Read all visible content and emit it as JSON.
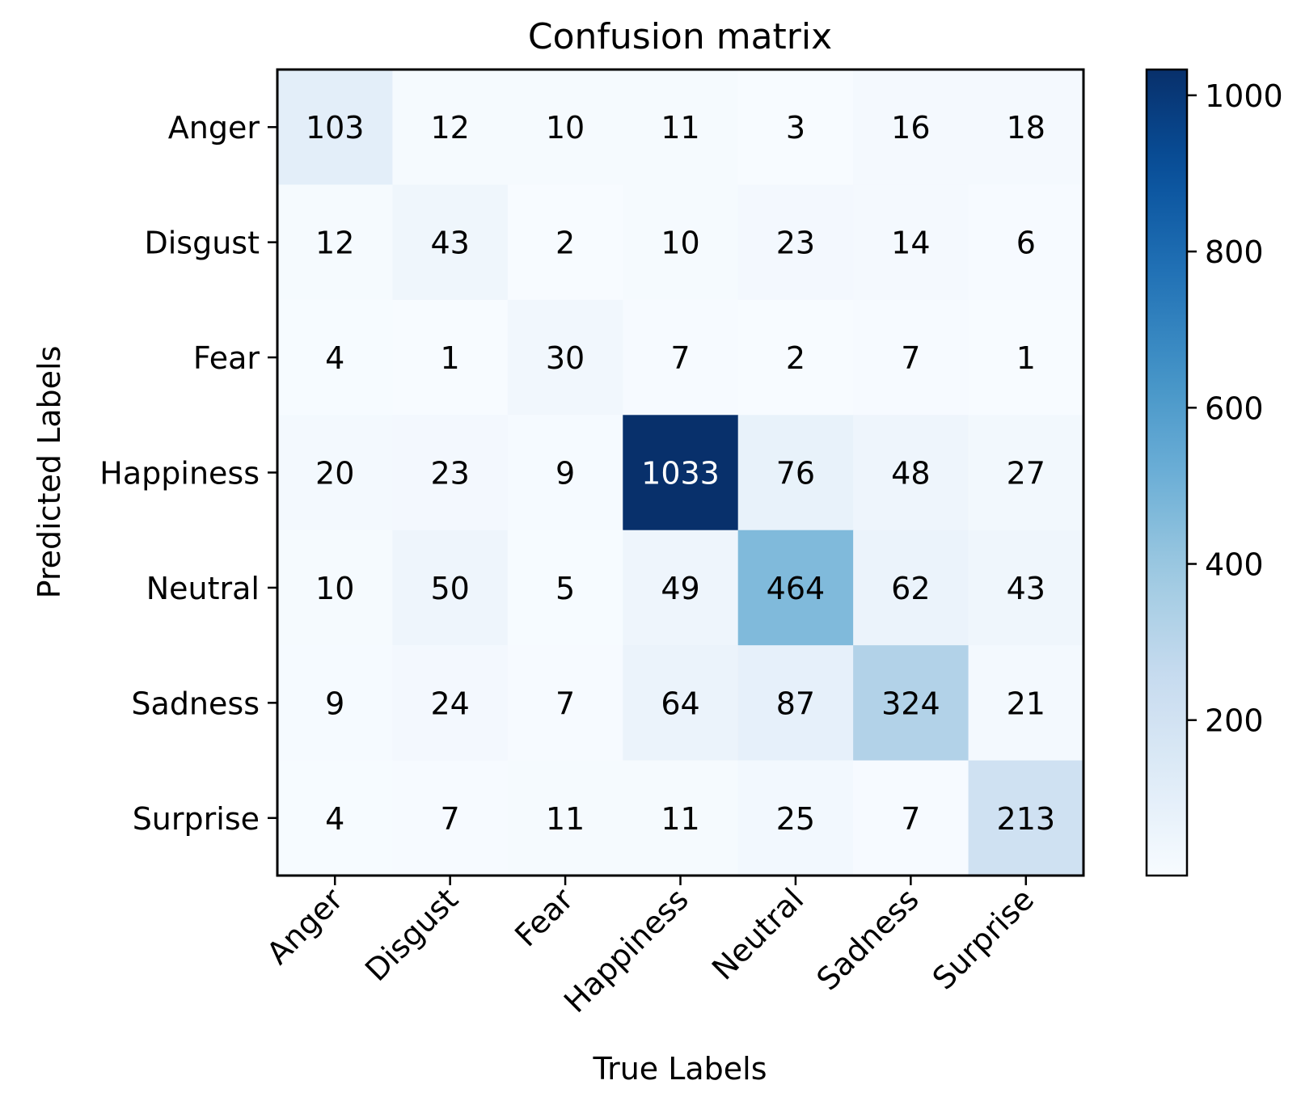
{
  "chart_data": {
    "type": "heatmap",
    "title": "Confusion matrix",
    "xlabel": "True Labels",
    "ylabel": "Predicted Labels",
    "x_categories": [
      "Anger",
      "Disgust",
      "Fear",
      "Happiness",
      "Neutral",
      "Sadness",
      "Surprise"
    ],
    "y_categories": [
      "Anger",
      "Disgust",
      "Fear",
      "Happiness",
      "Neutral",
      "Sadness",
      "Surprise"
    ],
    "values": [
      [
        103,
        12,
        10,
        11,
        3,
        16,
        18
      ],
      [
        12,
        43,
        2,
        10,
        23,
        14,
        6
      ],
      [
        4,
        1,
        30,
        7,
        2,
        7,
        1
      ],
      [
        20,
        23,
        9,
        1033,
        76,
        48,
        27
      ],
      [
        10,
        50,
        5,
        49,
        464,
        62,
        43
      ],
      [
        9,
        24,
        7,
        64,
        87,
        324,
        21
      ],
      [
        4,
        7,
        11,
        11,
        25,
        7,
        213
      ]
    ],
    "colormap": "Blues",
    "colorbar": {
      "range": [
        1,
        1033
      ],
      "ticks": [
        200,
        400,
        600,
        800,
        1000
      ]
    }
  }
}
